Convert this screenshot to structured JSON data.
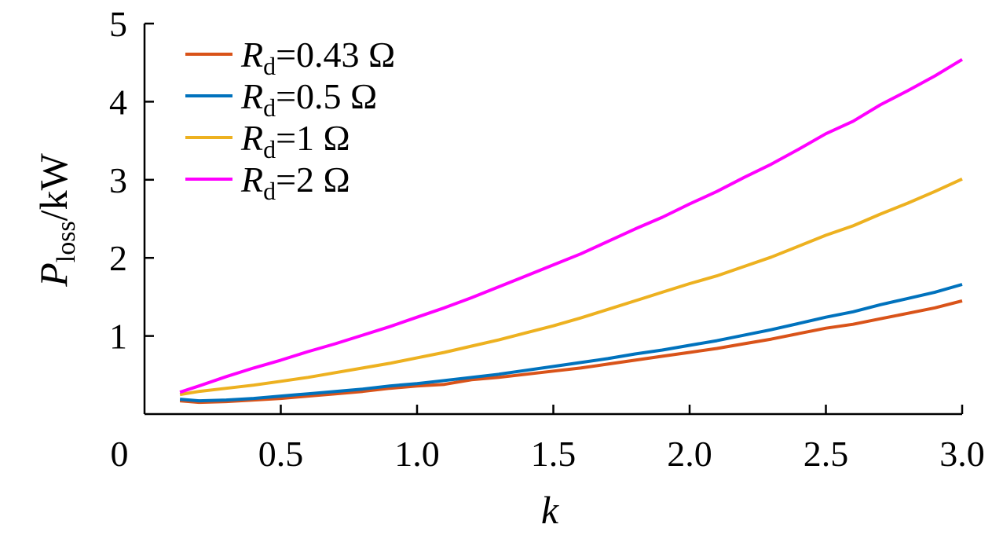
{
  "chart_data": {
    "type": "line",
    "xlabel": "k",
    "ylabel": "P_loss/kW",
    "ylabel_parts": {
      "main": "P",
      "sub": "loss",
      "tail": "/kW"
    },
    "xlim": [
      0,
      3.0
    ],
    "ylim": [
      0,
      5
    ],
    "x_ticks": [
      0.5,
      1.0,
      1.5,
      2.0,
      2.5,
      3.0
    ],
    "x_tick_labels": [
      "0.5",
      "1.0",
      "1.5",
      "2.0",
      "2.5",
      "3.0"
    ],
    "x_origin_label": "0",
    "y_ticks": [
      1,
      2,
      3,
      4,
      5
    ],
    "y_tick_labels": [
      "1",
      "2",
      "3",
      "4",
      "5"
    ],
    "grid": false,
    "legend_position": "top-left",
    "series": [
      {
        "name": "R_d=0.43 Ω",
        "label_main": "R",
        "label_sub": "d",
        "label_tail": "=0.43 Ω",
        "color": "#D95319",
        "x": [
          0.13,
          0.2,
          0.3,
          0.4,
          0.5,
          0.6,
          0.7,
          0.8,
          0.9,
          1.0,
          1.1,
          1.2,
          1.3,
          1.4,
          1.5,
          1.6,
          1.7,
          1.8,
          1.9,
          2.0,
          2.1,
          2.2,
          2.3,
          2.4,
          2.5,
          2.6,
          2.7,
          2.8,
          2.9,
          3.0
        ],
        "y": [
          0.17,
          0.15,
          0.16,
          0.18,
          0.2,
          0.23,
          0.26,
          0.29,
          0.33,
          0.36,
          0.38,
          0.44,
          0.47,
          0.51,
          0.55,
          0.59,
          0.64,
          0.69,
          0.74,
          0.79,
          0.84,
          0.9,
          0.96,
          1.03,
          1.1,
          1.15,
          1.22,
          1.29,
          1.36,
          1.45
        ]
      },
      {
        "name": "R_d=0.5 Ω",
        "label_main": "R",
        "label_sub": "d",
        "label_tail": "=0.5 Ω",
        "color": "#0072BD",
        "x": [
          0.13,
          0.2,
          0.3,
          0.4,
          0.5,
          0.6,
          0.7,
          0.8,
          0.9,
          1.0,
          1.1,
          1.2,
          1.3,
          1.4,
          1.5,
          1.6,
          1.7,
          1.8,
          1.9,
          2.0,
          2.1,
          2.2,
          2.3,
          2.4,
          2.5,
          2.6,
          2.7,
          2.8,
          2.9,
          3.0
        ],
        "y": [
          0.19,
          0.17,
          0.18,
          0.2,
          0.23,
          0.26,
          0.29,
          0.32,
          0.36,
          0.39,
          0.43,
          0.47,
          0.51,
          0.56,
          0.61,
          0.66,
          0.71,
          0.77,
          0.82,
          0.88,
          0.94,
          1.01,
          1.08,
          1.16,
          1.24,
          1.31,
          1.4,
          1.48,
          1.56,
          1.66
        ]
      },
      {
        "name": "R_d=1 Ω",
        "label_main": "R",
        "label_sub": "d",
        "label_tail": "=1 Ω",
        "color": "#EDB120",
        "x": [
          0.13,
          0.2,
          0.3,
          0.4,
          0.5,
          0.6,
          0.7,
          0.8,
          0.9,
          1.0,
          1.1,
          1.2,
          1.3,
          1.4,
          1.5,
          1.6,
          1.7,
          1.8,
          1.9,
          2.0,
          2.1,
          2.2,
          2.3,
          2.4,
          2.5,
          2.6,
          2.7,
          2.8,
          2.9,
          3.0
        ],
        "y": [
          0.25,
          0.29,
          0.33,
          0.37,
          0.42,
          0.47,
          0.53,
          0.59,
          0.65,
          0.72,
          0.79,
          0.87,
          0.95,
          1.04,
          1.13,
          1.23,
          1.34,
          1.45,
          1.56,
          1.67,
          1.77,
          1.89,
          2.01,
          2.15,
          2.29,
          2.41,
          2.56,
          2.7,
          2.85,
          3.01
        ]
      },
      {
        "name": "R_d=2 Ω",
        "label_main": "R",
        "label_sub": "d",
        "label_tail": "=2 Ω",
        "color": "#FF00FF",
        "x": [
          0.13,
          0.2,
          0.3,
          0.4,
          0.5,
          0.6,
          0.7,
          0.8,
          0.9,
          1.0,
          1.1,
          1.2,
          1.3,
          1.4,
          1.5,
          1.6,
          1.7,
          1.8,
          1.9,
          2.0,
          2.1,
          2.2,
          2.3,
          2.4,
          2.5,
          2.6,
          2.7,
          2.8,
          2.9,
          3.0
        ],
        "y": [
          0.28,
          0.36,
          0.48,
          0.59,
          0.69,
          0.8,
          0.9,
          1.01,
          1.12,
          1.24,
          1.36,
          1.49,
          1.63,
          1.77,
          1.91,
          2.05,
          2.21,
          2.37,
          2.52,
          2.69,
          2.85,
          3.03,
          3.2,
          3.39,
          3.59,
          3.75,
          3.96,
          4.14,
          4.33,
          4.54
        ]
      }
    ]
  }
}
